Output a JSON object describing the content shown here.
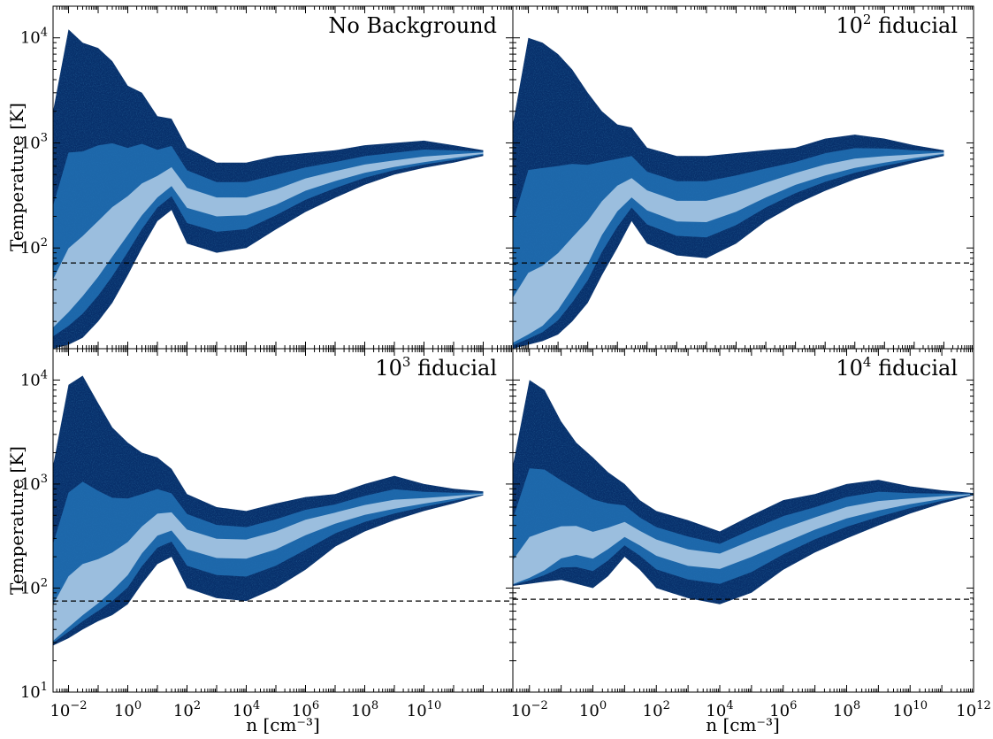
{
  "figure": {
    "colormap": "Blues_r",
    "colors": {
      "dark": "#08306b",
      "mid": "#2171b5",
      "light": "#c6dbef",
      "paper": "#ffffff",
      "refline": "#000000"
    }
  },
  "chart_data": [
    {
      "type": "heatmap",
      "panel": "top-left",
      "label_base": "",
      "label_exp": "",
      "label_text": "No Background",
      "xlabel": "",
      "ylabel": "Temperature [K]",
      "xscale": "log",
      "yscale": "log",
      "xlim": [
        0.003,
        10000000000000.0
      ],
      "ylim": [
        11,
        20000
      ],
      "xticks": [
        0.01,
        1,
        100,
        10000,
        1000000,
        100000000,
        10000000000,
        1000000000000
      ],
      "xtick_labels_shown": false,
      "yticks": [
        100,
        1000,
        10000
      ],
      "ytick_labels": [
        {
          "base": "10",
          "exp": "2"
        },
        {
          "base": "10",
          "exp": "3"
        },
        {
          "base": "10",
          "exp": "4"
        }
      ],
      "dashed_line_T": 72,
      "envelope_x": [
        0.003,
        0.01,
        0.03,
        0.1,
        0.3,
        1,
        3,
        10,
        30,
        100,
        1000,
        10000,
        100000,
        1000000,
        10000000,
        100000000,
        1000000000,
        10000000000,
        100000000000,
        1000000000000
      ],
      "envelope_upper": [
        2000,
        12000,
        9000,
        8000,
        6000,
        3500,
        3000,
        1800,
        1700,
        900,
        650,
        650,
        750,
        800,
        850,
        950,
        1000,
        1050,
        950,
        850
      ],
      "envelope_lower": [
        11,
        12,
        14,
        20,
        30,
        55,
        100,
        180,
        230,
        110,
        90,
        100,
        150,
        220,
        300,
        400,
        500,
        580,
        650,
        750
      ],
      "ridge": [
        20,
        30,
        45,
        70,
        110,
        170,
        250,
        350,
        450,
        300,
        250,
        250,
        300,
        400,
        480,
        560,
        620,
        680,
        740,
        800
      ]
    },
    {
      "type": "heatmap",
      "panel": "top-right",
      "label_base": "10",
      "label_exp": "2",
      "label_text": " fiducial",
      "xlabel": "",
      "ylabel": "",
      "xscale": "log",
      "yscale": "log",
      "xlim": [
        0.003,
        10000000000000.0
      ],
      "ylim": [
        11,
        20000
      ],
      "xticks": [
        0.01,
        1,
        100,
        10000,
        1000000,
        100000000,
        10000000000,
        1000000000000
      ],
      "xtick_labels_shown": false,
      "yticks": [
        100,
        1000,
        10000
      ],
      "ytick_labels": [],
      "dashed_line_T": 72,
      "envelope_x": [
        0.003,
        0.01,
        0.03,
        0.1,
        0.3,
        1,
        3,
        10,
        30,
        100,
        1000,
        10000,
        100000,
        1000000,
        10000000,
        100000000,
        1000000000,
        10000000000,
        100000000000,
        1000000000000
      ],
      "envelope_upper": [
        1500,
        10000,
        9000,
        7000,
        5000,
        3000,
        2000,
        1500,
        1400,
        900,
        750,
        750,
        800,
        850,
        900,
        1100,
        1200,
        1100,
        950,
        850
      ],
      "envelope_lower": [
        11,
        12,
        13,
        15,
        20,
        30,
        55,
        100,
        180,
        110,
        85,
        80,
        110,
        180,
        260,
        350,
        450,
        550,
        650,
        750
      ],
      "ridge": [
        13,
        16,
        20,
        30,
        50,
        90,
        170,
        280,
        350,
        280,
        220,
        220,
        270,
        350,
        450,
        540,
        620,
        680,
        740,
        800
      ]
    },
    {
      "type": "heatmap",
      "panel": "bottom-left",
      "label_base": "10",
      "label_exp": "3",
      "label_text": " fiducial",
      "xlabel": "n [cm⁻³]",
      "ylabel": "Temperature [K]",
      "xscale": "log",
      "yscale": "log",
      "xlim": [
        0.003,
        10000000000000.0
      ],
      "ylim": [
        10,
        20000
      ],
      "xticks": [
        0.01,
        1,
        100,
        10000,
        1000000,
        100000000,
        10000000000,
        1000000000000
      ],
      "xtick_labels_shown": true,
      "xtick_labels": [
        {
          "base": "10",
          "exp": "−2"
        },
        {
          "base": "10",
          "exp": "0"
        },
        {
          "base": "10",
          "exp": "2"
        },
        {
          "base": "10",
          "exp": "4"
        },
        {
          "base": "10",
          "exp": "6"
        },
        {
          "base": "10",
          "exp": "8"
        },
        {
          "base": "10",
          "exp": "10"
        }
      ],
      "yticks": [
        10,
        100,
        1000,
        10000
      ],
      "ytick_labels": [
        {
          "base": "10",
          "exp": "1"
        },
        {
          "base": "10",
          "exp": "2"
        },
        {
          "base": "10",
          "exp": "3"
        },
        {
          "base": "10",
          "exp": "4"
        }
      ],
      "dashed_line_T": 75,
      "envelope_x": [
        0.003,
        0.01,
        0.03,
        0.1,
        0.3,
        1,
        3,
        10,
        30,
        100,
        1000,
        10000,
        100000,
        1000000,
        10000000,
        100000000,
        1000000000,
        10000000000,
        100000000000,
        1000000000000
      ],
      "envelope_upper": [
        1500,
        9000,
        11000,
        6000,
        3500,
        2500,
        2000,
        1800,
        1400,
        800,
        600,
        550,
        650,
        750,
        800,
        1000,
        1200,
        1000,
        900,
        850
      ],
      "envelope_lower": [
        28,
        33,
        40,
        48,
        55,
        70,
        110,
        170,
        200,
        100,
        80,
        75,
        100,
        150,
        250,
        350,
        450,
        550,
        650,
        780
      ],
      "ridge": [
        32,
        45,
        60,
        80,
        110,
        160,
        260,
        380,
        420,
        300,
        250,
        250,
        300,
        400,
        480,
        560,
        620,
        680,
        740,
        800
      ]
    },
    {
      "type": "heatmap",
      "panel": "bottom-right",
      "label_base": "10",
      "label_exp": "4",
      "label_text": " fiducial",
      "xlabel": "n [cm⁻³]",
      "ylabel": "",
      "xscale": "log",
      "yscale": "log",
      "xlim": [
        0.003,
        1000000000000.0
      ],
      "ylim": [
        10,
        20000
      ],
      "xticks": [
        0.01,
        1,
        100,
        10000,
        1000000,
        100000000,
        10000000000,
        1000000000000
      ],
      "xtick_labels_shown": true,
      "xtick_labels": [
        {
          "base": "10",
          "exp": "−2"
        },
        {
          "base": "10",
          "exp": "0"
        },
        {
          "base": "10",
          "exp": "2"
        },
        {
          "base": "10",
          "exp": "4"
        },
        {
          "base": "10",
          "exp": "6"
        },
        {
          "base": "10",
          "exp": "8"
        },
        {
          "base": "10",
          "exp": "10"
        },
        {
          "base": "10",
          "exp": "12"
        }
      ],
      "yticks": [
        10,
        100,
        1000,
        10000
      ],
      "ytick_labels": [],
      "dashed_line_T": 78,
      "envelope_x": [
        0.003,
        0.01,
        0.03,
        0.1,
        0.3,
        1,
        3,
        10,
        30,
        100,
        1000,
        10000,
        100000,
        1000000,
        10000000,
        100000000,
        1000000000,
        10000000000,
        100000000000,
        1000000000000
      ],
      "envelope_upper": [
        1500,
        10000,
        8000,
        4000,
        2500,
        1800,
        1300,
        1000,
        700,
        550,
        450,
        350,
        500,
        700,
        800,
        1000,
        1100,
        950,
        870,
        820
      ],
      "envelope_lower": [
        105,
        110,
        115,
        120,
        110,
        100,
        130,
        200,
        150,
        100,
        80,
        70,
        90,
        150,
        220,
        300,
        400,
        520,
        650,
        780
      ],
      "ridge": [
        110,
        130,
        160,
        220,
        250,
        230,
        280,
        350,
        300,
        250,
        200,
        190,
        250,
        320,
        420,
        530,
        610,
        680,
        740,
        800
      ]
    }
  ]
}
